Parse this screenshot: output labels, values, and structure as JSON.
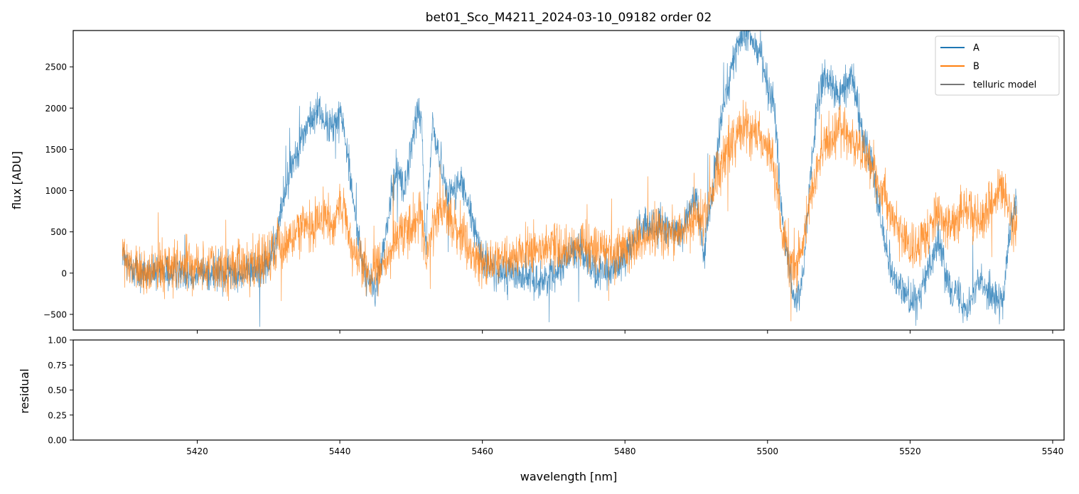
{
  "chart_data": [
    {
      "type": "line",
      "title": "bet01_Sco_M4211_2024-03-10_09182  order 02",
      "ylabel": "flux [ADU]",
      "xlim": [
        5402.6,
        5541.6
      ],
      "ylim": [
        -690,
        2940
      ],
      "xticks": [
        5420,
        5440,
        5460,
        5480,
        5500,
        5520,
        5540
      ],
      "yticks": [
        -500,
        0,
        500,
        1000,
        1500,
        2000,
        2500
      ],
      "legend": {
        "placement": "top-right",
        "entries": [
          "A",
          "B",
          "telluric model"
        ]
      },
      "grid": false,
      "noise_amplitude": {
        "A": 110,
        "B": 150
      },
      "series": [
        {
          "name": "A",
          "color": "#1f77b4",
          "x": [
            5409.5,
            5410,
            5412,
            5415,
            5418,
            5421,
            5424,
            5427,
            5430,
            5431,
            5432,
            5433,
            5434,
            5435,
            5436,
            5437,
            5438,
            5439,
            5440,
            5441,
            5442,
            5443,
            5444,
            5445,
            5446,
            5447,
            5448,
            5449,
            5450,
            5451,
            5451.5,
            5452,
            5453,
            5454,
            5455,
            5456,
            5457,
            5458,
            5459,
            5460,
            5462,
            5465,
            5468,
            5470,
            5472,
            5474,
            5476,
            5478,
            5480,
            5482,
            5484,
            5486,
            5488,
            5489,
            5490,
            5491,
            5492,
            5493,
            5494,
            5495,
            5496,
            5497,
            5498,
            5499,
            5500,
            5501,
            5502,
            5503,
            5504,
            5505,
            5506,
            5507,
            5508,
            5509,
            5510,
            5511,
            5512,
            5513,
            5514,
            5515,
            5516,
            5517,
            5518,
            5519,
            5520,
            5521,
            5522,
            5523,
            5524,
            5525,
            5526,
            5527,
            5528,
            5529,
            5530,
            5531,
            5532,
            5533,
            5534,
            5535
          ],
          "y": [
            300,
            100,
            0,
            0,
            20,
            0,
            0,
            0,
            100,
            350,
            900,
            1250,
            1500,
            1700,
            1850,
            2000,
            1800,
            1750,
            2000,
            1500,
            800,
            200,
            -100,
            -200,
            200,
            800,
            1300,
            1000,
            1500,
            2000,
            1800,
            300,
            1800,
            1400,
            1000,
            1000,
            1100,
            800,
            500,
            200,
            0,
            0,
            -100,
            0,
            200,
            300,
            0,
            0,
            200,
            500,
            600,
            500,
            500,
            800,
            900,
            200,
            800,
            1500,
            2200,
            2500,
            2800,
            2900,
            2800,
            2700,
            2300,
            2000,
            700,
            0,
            -400,
            0,
            1200,
            2000,
            2400,
            2300,
            2100,
            2300,
            2400,
            1800,
            1500,
            1200,
            600,
            200,
            -100,
            -200,
            -300,
            -400,
            -100,
            200,
            400,
            0,
            -200,
            -300,
            -400,
            -200,
            -100,
            -200,
            -300,
            -400,
            500,
            900
          ]
        },
        {
          "name": "B",
          "color": "#ff7f0e",
          "x": [
            5409.5,
            5410,
            5412,
            5415,
            5418,
            5421,
            5424,
            5427,
            5430,
            5432,
            5434,
            5436,
            5438,
            5439,
            5440,
            5442,
            5444,
            5446,
            5448,
            5450,
            5451.5,
            5452,
            5454,
            5456,
            5458,
            5460,
            5462,
            5465,
            5468,
            5470,
            5472,
            5474,
            5476,
            5478,
            5480,
            5482,
            5484,
            5486,
            5488,
            5490,
            5491,
            5492,
            5493,
            5494,
            5495,
            5496,
            5497,
            5498,
            5499,
            5500,
            5501,
            5502,
            5503,
            5504,
            5505,
            5506,
            5507,
            5508,
            5509,
            5510,
            5511,
            5512,
            5513,
            5514,
            5515,
            5516,
            5517,
            5518,
            5519,
            5520,
            5521,
            5522,
            5523,
            5524,
            5525,
            5526,
            5527,
            5528,
            5529,
            5530,
            5531,
            5532,
            5533,
            5534,
            5535
          ],
          "y": [
            300,
            100,
            0,
            50,
            100,
            80,
            50,
            100,
            200,
            350,
            500,
            600,
            700,
            550,
            800,
            300,
            0,
            100,
            400,
            600,
            700,
            150,
            800,
            600,
            300,
            100,
            150,
            200,
            300,
            300,
            300,
            350,
            300,
            250,
            300,
            400,
            500,
            450,
            500,
            700,
            600,
            900,
            1200,
            1400,
            1600,
            1700,
            1750,
            1700,
            1650,
            1500,
            1200,
            600,
            200,
            0,
            400,
            900,
            1300,
            1500,
            1600,
            1700,
            1700,
            1600,
            1500,
            1400,
            1200,
            1000,
            800,
            600,
            400,
            350,
            350,
            450,
            600,
            700,
            600,
            500,
            700,
            800,
            700,
            600,
            800,
            900,
            1000,
            700,
            600
          ]
        },
        {
          "name": "telluric model",
          "color": "#777777",
          "x": [],
          "y": []
        }
      ]
    },
    {
      "type": "line",
      "title": "",
      "xlabel": "wavelength [nm]",
      "ylabel": "residual",
      "xlim": [
        5402.6,
        5541.6
      ],
      "ylim": [
        0,
        1
      ],
      "xticks": [
        5420,
        5440,
        5460,
        5480,
        5500,
        5520,
        5540
      ],
      "yticks": [
        0.0,
        0.25,
        0.5,
        0.75,
        1.0
      ],
      "ytick_labels": [
        "0.00",
        "0.25",
        "0.50",
        "0.75",
        "1.00"
      ],
      "grid": false,
      "series": []
    }
  ]
}
